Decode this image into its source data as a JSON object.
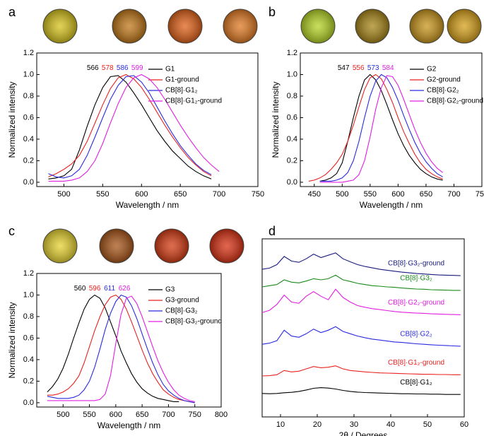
{
  "chart_data": [
    {
      "type": "line",
      "panel": "a",
      "xlabel": "Wavelength / nm",
      "ylabel": "Normalized intensity",
      "xlim": [
        465,
        750
      ],
      "ylim": [
        -0.04,
        1.2
      ],
      "xticks": [
        500,
        550,
        600,
        650,
        700,
        750
      ],
      "yticks": [
        {
          "value": 0,
          "label": "0.0"
        },
        0.2,
        0.4,
        0.6,
        0.8,
        {
          "value": 1,
          "label": "1.0"
        },
        1.2
      ],
      "legend": "upper right",
      "x": [
        480,
        490,
        500,
        510,
        520,
        530,
        540,
        550,
        560,
        570,
        580,
        590,
        600,
        610,
        620,
        630,
        640,
        650,
        660,
        670,
        680,
        690,
        700
      ],
      "series": [
        {
          "name": "G1",
          "color": "#000000",
          "peak": 566,
          "values": [
            0.03,
            0.04,
            0.06,
            0.12,
            0.3,
            0.52,
            0.72,
            0.88,
            0.98,
            0.99,
            0.93,
            0.83,
            0.72,
            0.6,
            0.48,
            0.38,
            0.29,
            0.22,
            0.15,
            0.1,
            0.06,
            0.03,
            null
          ]
        },
        {
          "name": "G1-ground",
          "color": "#e8231f",
          "peak": 578,
          "values": [
            0.05,
            0.08,
            0.12,
            0.17,
            0.25,
            0.38,
            0.55,
            0.72,
            0.87,
            0.97,
            1.0,
            0.96,
            0.88,
            0.77,
            0.65,
            0.53,
            0.42,
            0.32,
            0.23,
            0.16,
            0.1,
            0.06,
            null
          ]
        },
        {
          "name": "CB[8]·G1₂",
          "color": "#2a2ae0",
          "peak": 586,
          "values": [
            0.08,
            0.05,
            0.04,
            0.06,
            0.12,
            0.25,
            0.42,
            0.6,
            0.77,
            0.9,
            0.98,
            0.99,
            0.93,
            0.83,
            0.7,
            0.57,
            0.45,
            0.34,
            0.25,
            0.17,
            0.11,
            0.07,
            null
          ]
        },
        {
          "name": "CB[8]·G1₂-ground",
          "color": "#e020e0",
          "peak": 599,
          "values": [
            0.01,
            0.01,
            0.01,
            0.02,
            0.04,
            0.1,
            0.2,
            0.36,
            0.55,
            0.73,
            0.88,
            0.97,
            1.0,
            0.96,
            0.88,
            0.77,
            0.65,
            0.53,
            0.42,
            0.32,
            0.23,
            0.16,
            0.1
          ]
        }
      ]
    },
    {
      "type": "line",
      "panel": "b",
      "xlabel": "Wavelength / nm",
      "ylabel": "Normalized intensity",
      "xlim": [
        425,
        750
      ],
      "ylim": [
        -0.04,
        1.2
      ],
      "xticks": [
        450,
        500,
        550,
        600,
        650,
        700,
        750
      ],
      "yticks": [
        {
          "value": 0,
          "label": "0.0"
        },
        0.2,
        0.4,
        0.6,
        0.8,
        {
          "value": 1,
          "label": "1.0"
        },
        1.2
      ],
      "legend": "upper right",
      "x": [
        440,
        450,
        460,
        470,
        480,
        490,
        500,
        510,
        520,
        530,
        540,
        550,
        560,
        570,
        580,
        590,
        600,
        610,
        620,
        630,
        640,
        650,
        660,
        670,
        680
      ],
      "series": [
        {
          "name": "G2",
          "color": "#000000",
          "peak": 547,
          "values": [
            null,
            null,
            0.01,
            0.02,
            0.04,
            0.08,
            0.18,
            0.38,
            0.6,
            0.8,
            0.95,
            1.0,
            0.95,
            0.85,
            0.72,
            0.58,
            0.45,
            0.34,
            0.25,
            0.18,
            0.12,
            0.08,
            0.05,
            0.03,
            0.02
          ]
        },
        {
          "name": "G2-ground",
          "color": "#e8231f",
          "peak": 556,
          "values": [
            0.01,
            0.02,
            0.04,
            0.07,
            0.12,
            0.18,
            0.26,
            0.38,
            0.53,
            0.7,
            0.86,
            0.97,
            1.0,
            0.96,
            0.86,
            0.74,
            0.6,
            0.47,
            0.36,
            0.26,
            0.18,
            0.12,
            0.08,
            0.05,
            0.03
          ]
        },
        {
          "name": "CB[8]·G2₂",
          "color": "#2a2ae0",
          "peak": 573,
          "values": [
            null,
            null,
            0.01,
            0.01,
            0.01,
            0.02,
            0.04,
            0.09,
            0.2,
            0.38,
            0.6,
            0.8,
            0.94,
            1.0,
            0.97,
            0.88,
            0.76,
            0.62,
            0.49,
            0.37,
            0.27,
            0.19,
            0.13,
            0.08,
            0.05
          ]
        },
        {
          "name": "CB[8]·G2₂-ground",
          "color": "#e020e0",
          "peak": 584,
          "values": [
            null,
            null,
            0,
            0,
            0,
            0,
            0,
            0.01,
            0.02,
            0.07,
            0.2,
            0.42,
            0.68,
            0.88,
            0.99,
            0.98,
            0.9,
            0.77,
            0.63,
            0.49,
            0.37,
            0.27,
            0.19,
            0.13,
            0.09
          ]
        }
      ]
    },
    {
      "type": "line",
      "panel": "c",
      "xlabel": "Wavelength / nm",
      "ylabel": "Normalized intensity",
      "xlim": [
        450,
        800
      ],
      "ylim": [
        -0.04,
        1.2
      ],
      "xticks": [
        500,
        550,
        600,
        650,
        700,
        750,
        800
      ],
      "yticks": [
        {
          "value": 0,
          "label": "0.0"
        },
        0.2,
        0.4,
        0.6,
        0.8,
        {
          "value": 1,
          "label": "1.0"
        },
        1.2
      ],
      "legend": "upper right",
      "x": [
        470,
        480,
        490,
        500,
        510,
        520,
        530,
        540,
        550,
        560,
        570,
        580,
        590,
        600,
        610,
        620,
        630,
        640,
        650,
        660,
        670,
        680,
        690,
        700,
        710,
        720,
        730,
        740,
        750
      ],
      "series": [
        {
          "name": "G3",
          "color": "#000000",
          "peak": 560,
          "values": [
            0.1,
            0.15,
            0.22,
            0.32,
            0.45,
            0.6,
            0.74,
            0.87,
            0.96,
            1.0,
            0.97,
            0.88,
            0.75,
            0.62,
            0.48,
            0.37,
            0.27,
            0.19,
            0.13,
            0.09,
            0.06,
            0.04,
            0.03,
            0.02,
            0.01,
            0.01,
            null,
            null,
            null
          ]
        },
        {
          "name": "G3-ground",
          "color": "#e8231f",
          "peak": 596,
          "values": [
            0.07,
            0.07,
            0.08,
            0.1,
            0.13,
            0.18,
            0.25,
            0.37,
            0.52,
            0.67,
            0.8,
            0.91,
            0.98,
            1.0,
            0.96,
            0.87,
            0.75,
            0.62,
            0.49,
            0.37,
            0.27,
            0.19,
            0.12,
            0.08,
            0.05,
            0.03,
            0.02,
            0.01,
            0
          ]
        },
        {
          "name": "CB[8]·G3₂",
          "color": "#2a2ae0",
          "peak": 611,
          "values": [
            0.06,
            0.05,
            0.04,
            0.04,
            0.04,
            0.05,
            0.07,
            0.12,
            0.2,
            0.33,
            0.5,
            0.68,
            0.83,
            0.94,
            1.0,
            0.98,
            0.9,
            0.78,
            0.64,
            0.5,
            0.37,
            0.26,
            0.17,
            0.11,
            0.07,
            0.04,
            0.02,
            0.01,
            0
          ]
        },
        {
          "name": "CB[8]·G3₂-ground",
          "color": "#e020e0",
          "peak": 626,
          "values": [
            0.02,
            0.02,
            0.02,
            0.02,
            0.02,
            0.02,
            0.02,
            0.02,
            0.02,
            0.02,
            0.03,
            0.08,
            0.25,
            0.55,
            0.82,
            0.97,
            0.99,
            0.92,
            0.8,
            0.66,
            0.52,
            0.39,
            0.28,
            0.19,
            0.12,
            0.07,
            0.04,
            0.02,
            0.01
          ]
        }
      ]
    },
    {
      "type": "line",
      "panel": "d",
      "xlabel": "2θ / Degrees",
      "xlim": [
        5,
        60
      ],
      "ylim": [
        0,
        7.6
      ],
      "xticks": [
        10,
        20,
        30,
        40,
        50,
        60
      ],
      "legend": "inline",
      "x": [
        5,
        7,
        9,
        11,
        13,
        15,
        17,
        19,
        21,
        23,
        25,
        27,
        29,
        31,
        33,
        35,
        37,
        39,
        41,
        43,
        45,
        47,
        49,
        51,
        53,
        55,
        57,
        59
      ],
      "series": [
        {
          "name": "CB[8]·G1₂",
          "color": "#000000",
          "values": [
            1.0,
            0.99,
            1.0,
            1.03,
            1.05,
            1.09,
            1.15,
            1.22,
            1.25,
            1.23,
            1.19,
            1.13,
            1.09,
            1.06,
            1.04,
            1.03,
            1.02,
            1.01,
            1.0,
            0.99,
            0.99,
            0.98,
            0.98,
            0.97,
            0.97,
            0.96,
            0.96,
            0.96
          ]
        },
        {
          "name": "CB[8]·G1₂-ground",
          "color": "#e8231f",
          "values": [
            1.75,
            1.76,
            1.8,
            1.98,
            1.92,
            1.95,
            2.05,
            2.15,
            2.1,
            2.12,
            2.18,
            2.05,
            1.98,
            1.95,
            1.92,
            1.9,
            1.88,
            1.87,
            1.86,
            1.85,
            1.84,
            1.83,
            1.82,
            1.82,
            1.81,
            1.81,
            1.8,
            1.8
          ]
        },
        {
          "name": "CB[8]·G2₂",
          "color": "#2a2ae0",
          "values": [
            3.1,
            3.15,
            3.25,
            3.7,
            3.45,
            3.4,
            3.55,
            3.75,
            3.6,
            3.7,
            3.85,
            3.65,
            3.55,
            3.45,
            3.38,
            3.32,
            3.28,
            3.24,
            3.2,
            3.18,
            3.15,
            3.12,
            3.1,
            3.08,
            3.06,
            3.05,
            3.03,
            3.02
          ]
        },
        {
          "name": "CB[8]·G2₂-ground",
          "color": "#e020e0",
          "values": [
            4.45,
            4.55,
            4.8,
            5.2,
            4.9,
            4.85,
            5.15,
            5.35,
            5.15,
            5.0,
            5.45,
            5.1,
            4.9,
            4.75,
            4.68,
            4.62,
            4.58,
            4.54,
            4.5,
            4.47,
            4.45,
            4.43,
            4.42,
            4.4,
            4.39,
            4.38,
            4.37,
            4.36
          ]
        },
        {
          "name": "CB[8]·G3₂",
          "color": "#1a8a1a",
          "values": [
            5.55,
            5.6,
            5.65,
            5.85,
            5.75,
            5.72,
            5.8,
            5.9,
            5.85,
            5.9,
            6.05,
            5.85,
            5.78,
            5.7,
            5.65,
            5.6,
            5.58,
            5.55,
            5.53,
            5.5,
            5.48,
            5.46,
            5.45,
            5.43,
            5.42,
            5.41,
            5.4,
            5.4
          ]
        },
        {
          "name": "CB[8]·G3₂-ground",
          "color": "#1a1a80",
          "values": [
            6.3,
            6.35,
            6.5,
            6.85,
            6.65,
            6.6,
            6.75,
            6.95,
            6.8,
            6.9,
            7.0,
            6.75,
            6.62,
            6.5,
            6.42,
            6.36,
            6.3,
            6.26,
            6.22,
            6.18,
            6.15,
            6.12,
            6.1,
            6.08,
            6.06,
            6.05,
            6.04,
            6.03
          ]
        }
      ]
    }
  ]
}
